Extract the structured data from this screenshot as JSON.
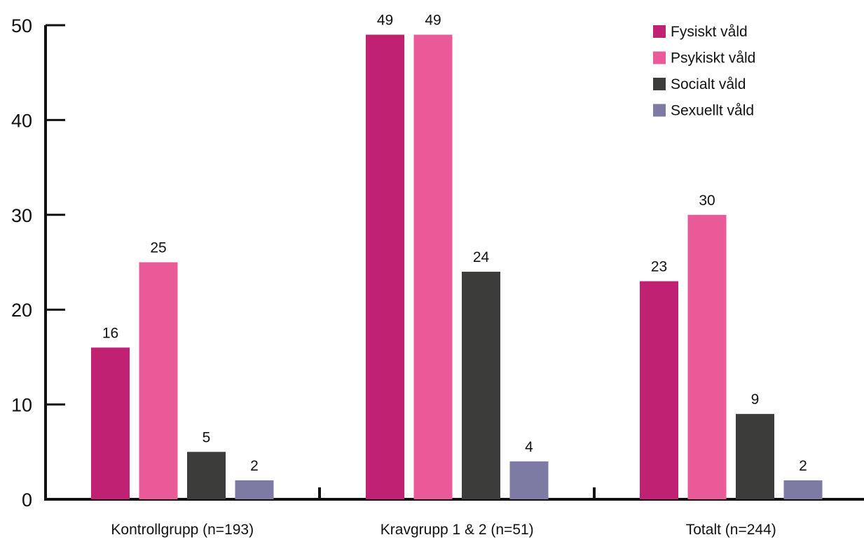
{
  "chart_data": {
    "type": "bar",
    "categories": [
      "Kontrollgrupp (n=193)",
      "Kravgrupp 1 & 2 (n=51)",
      "Totalt (n=244)"
    ],
    "series": [
      {
        "name": "Fysiskt våld",
        "color": "#c02172",
        "values": [
          16,
          49,
          23
        ]
      },
      {
        "name": "Psykiskt våld",
        "color": "#ea5a99",
        "values": [
          25,
          49,
          30
        ]
      },
      {
        "name": "Socialt våld",
        "color": "#3c3c3b",
        "values": [
          5,
          24,
          9
        ]
      },
      {
        "name": "Sexuellt våld",
        "color": "#7d7ba3",
        "values": [
          2,
          4,
          2
        ]
      }
    ],
    "yticks": [
      "0",
      "10",
      "20",
      "30",
      "40",
      "50"
    ],
    "ylim": [
      0,
      50
    ],
    "legend_position": "top-right",
    "grid": false
  }
}
